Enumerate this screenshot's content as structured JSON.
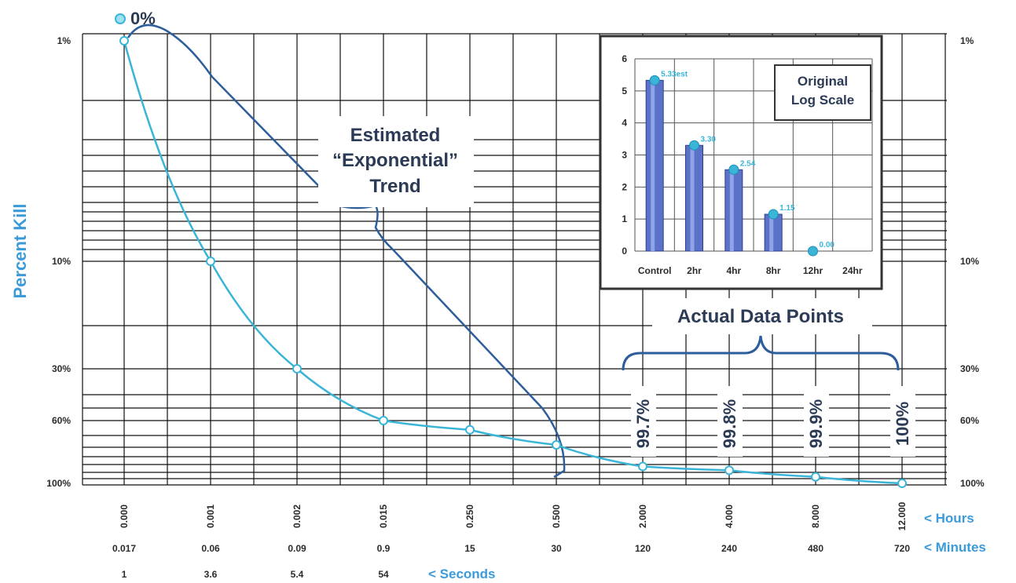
{
  "chart_data": [
    {
      "type": "line",
      "ylabel": "Percent Kill",
      "y_axis_log": true,
      "y_ticks": [
        "1%",
        "10%",
        "30%",
        "60%",
        "100%"
      ],
      "x_rows": [
        {
          "labels": [
            "0.000",
            "0.001",
            "0.002",
            "0.015",
            "0.250",
            "0.500",
            "2.000",
            "4.000",
            "8.000",
            "12.000"
          ],
          "unit": "< Hours"
        },
        {
          "labels": [
            "0.017",
            "0.06",
            "0.09",
            "0.9",
            "15",
            "30",
            "120",
            "240",
            "480",
            "720"
          ],
          "unit": "< Minutes"
        },
        {
          "labels": [
            "1",
            "3.6",
            "5.4",
            "54"
          ],
          "unit": "< Seconds"
        }
      ],
      "series": [
        {
          "name": "Actual Data Points",
          "x_hours": [
            0.0,
            0.001,
            0.002,
            0.015,
            0.25,
            0.5,
            2.0,
            4.0,
            8.0,
            12.0
          ],
          "y_percent_kill": [
            1,
            10,
            30,
            60,
            85,
            97,
            99.7,
            99.8,
            99.9,
            100
          ]
        }
      ],
      "top_marker": "0%",
      "trend_label_lines": [
        "Estimated",
        "“Exponential”",
        "Trend"
      ],
      "data_points_label": "Actual Data Points",
      "data_point_values": [
        "99.7%",
        "99.8%",
        "99.9%",
        "100%"
      ]
    },
    {
      "type": "bar",
      "title_lines": [
        "Original",
        "Log Scale"
      ],
      "categories": [
        "Control",
        "2hr",
        "4hr",
        "8hr",
        "12hr",
        "24hr"
      ],
      "values": [
        5.33,
        3.3,
        2.54,
        1.15,
        0.0,
        null
      ],
      "value_labels": [
        "5.33est",
        "3.30",
        "2.54",
        "1.15",
        "0.00",
        ""
      ],
      "ylim": [
        0,
        6
      ],
      "y_ticks": [
        "0",
        "1",
        "2",
        "3",
        "4",
        "5",
        "6"
      ]
    }
  ]
}
